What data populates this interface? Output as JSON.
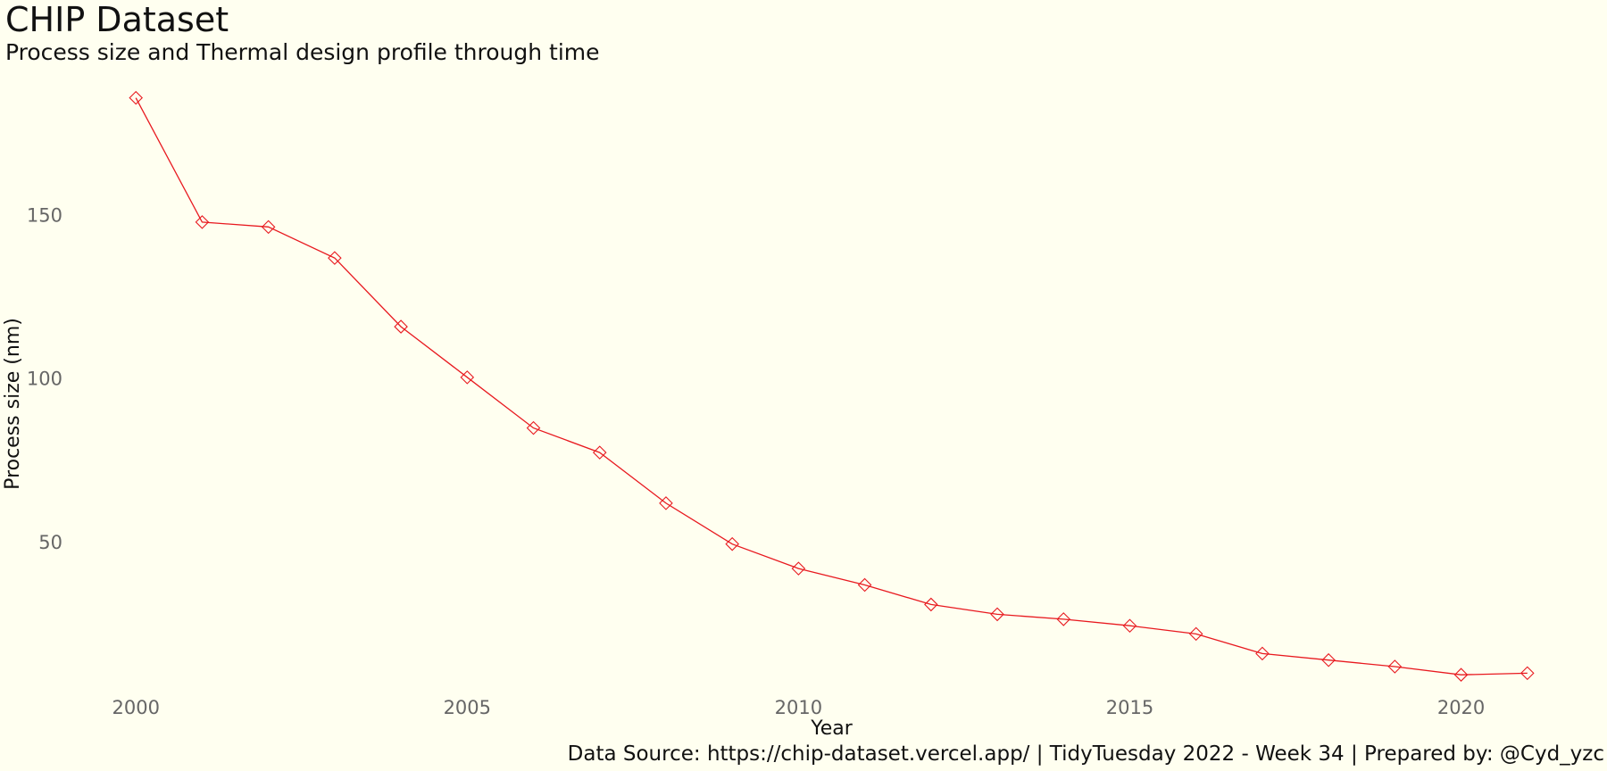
{
  "header": {
    "title": "CHIP Dataset",
    "subtitle": "Process size and Thermal design profile through time"
  },
  "caption": "Data Source:  https://chip-dataset.vercel.app/ | TidyTuesday 2022 - Week 34 | Prepared by: @Cyd_yzc",
  "colors": {
    "background": "#fffff0",
    "line": "#e8191f",
    "text": "#111111",
    "tick_text": "#666666"
  },
  "chart_data": {
    "type": "line",
    "title": "CHIP Dataset",
    "subtitle": "Process size and Thermal design profile through time",
    "xlabel": "Year",
    "ylabel": "Process size (nm)",
    "x_ticks": [
      2000,
      2005,
      2010,
      2015,
      2020
    ],
    "y_ticks": [
      50,
      100,
      150
    ],
    "xlim": [
      1999,
      2022
    ],
    "ylim": [
      3,
      190
    ],
    "grid": false,
    "marker": "diamond-open",
    "series": [
      {
        "x": [
          2000,
          2001,
          2002,
          2003,
          2004,
          2005,
          2006,
          2007,
          2008,
          2009,
          2010,
          2011,
          2012,
          2013,
          2014,
          2015,
          2016,
          2017,
          2018,
          2019,
          2020,
          2021
        ],
        "values": [
          186,
          148,
          146.5,
          137,
          116,
          100.5,
          85,
          77.5,
          62,
          49.5,
          42,
          37,
          31,
          28,
          26.5,
          24.5,
          22,
          16,
          14,
          12,
          9.5,
          10
        ]
      }
    ]
  }
}
